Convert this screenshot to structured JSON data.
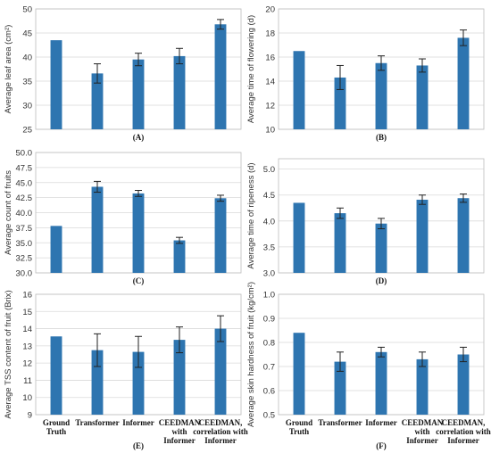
{
  "chart_data": [
    {
      "type": "bar",
      "label": "(A)",
      "ylabel": "Average leaf area (cm²)",
      "ylim": [
        25,
        50
      ],
      "ticks": [
        25,
        30,
        35,
        40,
        45,
        50
      ],
      "categories": [
        "Ground Truth",
        "Transformer",
        "Informer",
        "CEEDMAN with Informer",
        "CEEDMAN, correlation with Informer"
      ],
      "values": [
        43.5,
        36.6,
        39.5,
        40.2,
        46.8
      ],
      "errors": [
        0,
        2.0,
        1.3,
        1.6,
        1.0
      ],
      "show_categories": false,
      "bar_color": "#2e75b0"
    },
    {
      "type": "bar",
      "label": "(B)",
      "ylabel": "Average time of flowering (d)",
      "ylim": [
        10,
        20
      ],
      "ticks": [
        10,
        12,
        14,
        16,
        18,
        20
      ],
      "categories": [
        "Ground Truth",
        "Transformer",
        "Informer",
        "CEEDMAN with Informer",
        "CEEDMAN, correlation with Informer"
      ],
      "values": [
        16.5,
        14.3,
        15.5,
        15.3,
        17.6
      ],
      "errors": [
        0,
        1.0,
        0.6,
        0.55,
        0.65
      ],
      "show_categories": false,
      "bar_color": "#2e75b0"
    },
    {
      "type": "bar",
      "label": "(C)",
      "ylabel": "Average count of fruits",
      "ylim": [
        30,
        50
      ],
      "ticks": [
        "30.0",
        "32.5",
        "35.0",
        "37.5",
        "40.0",
        "42.5",
        "45.0",
        "47.5",
        "50.0"
      ],
      "categories": [
        "Ground Truth",
        "Transformer",
        "Informer",
        "CEEDMAN with Informer",
        "CEEDMAN, correlation with Informer"
      ],
      "values": [
        37.8,
        44.3,
        43.2,
        35.4,
        42.4
      ],
      "errors": [
        0,
        0.9,
        0.5,
        0.5,
        0.5
      ],
      "show_categories": false,
      "bar_color": "#2e75b0"
    },
    {
      "type": "bar",
      "label": "(D)",
      "ylabel": "Average time of ripeness (d)",
      "ylim": [
        3,
        5.2
      ],
      "ticks": [
        "3.0",
        "3.5",
        "4.0",
        "4.5",
        "5.0"
      ],
      "categories": [
        "Ground Truth",
        "Transformer",
        "Informer",
        "CEEDMAN with Informer",
        "CEEDMAN, correlation with Informer"
      ],
      "values": [
        4.35,
        4.15,
        3.95,
        4.41,
        4.44
      ],
      "errors": [
        0,
        0.1,
        0.1,
        0.09,
        0.08
      ],
      "show_categories": false,
      "bar_color": "#2e75b0"
    },
    {
      "type": "bar",
      "label": "(E)",
      "ylabel": "Average TSS content of fruit (Brix)",
      "ylim": [
        9,
        16
      ],
      "ticks": [
        9,
        10,
        11,
        12,
        13,
        14,
        15,
        16
      ],
      "categories": [
        "Ground Truth",
        "Transformer",
        "Informer",
        "CEEDMAN with Informer",
        "CEEDMAN, correlation with Informer"
      ],
      "values": [
        13.55,
        12.75,
        12.65,
        13.35,
        14.0
      ],
      "errors": [
        0,
        0.95,
        0.9,
        0.75,
        0.75
      ],
      "show_categories": true,
      "bar_color": "#2e75b0"
    },
    {
      "type": "bar",
      "label": "(F)",
      "ylabel": "Average skin hardness of fruit (kg/cm²)",
      "ylim": [
        0.5,
        1.0
      ],
      "ticks": [
        "0.5",
        "0.6",
        "0.7",
        "0.8",
        "0.9",
        "1.0"
      ],
      "categories": [
        "Ground Truth",
        "Transformer",
        "Informer",
        "CEEDMAN with Informer",
        "CEEDMAN, correlation with Informer"
      ],
      "values": [
        0.84,
        0.72,
        0.76,
        0.73,
        0.75
      ],
      "errors": [
        0,
        0.04,
        0.02,
        0.03,
        0.03
      ],
      "show_categories": true,
      "bar_color": "#2e75b0"
    }
  ],
  "category_lines": [
    [
      "Ground",
      "Truth"
    ],
    [
      "Transformer"
    ],
    [
      "Informer"
    ],
    [
      "CEEDMAN",
      "with",
      "Informer"
    ],
    [
      "CEEDMAN,",
      "correlation with",
      "Informer"
    ]
  ]
}
